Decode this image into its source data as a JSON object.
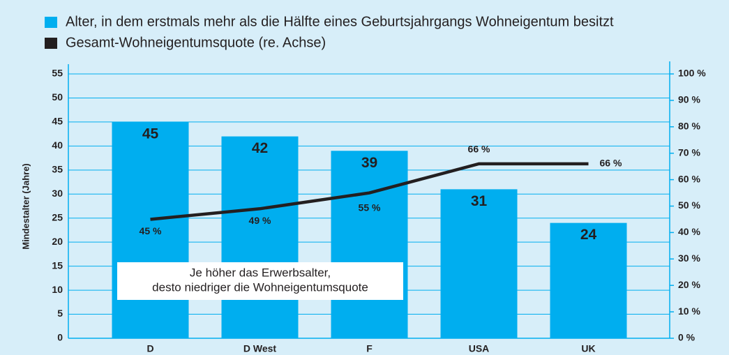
{
  "chart_data": {
    "type": "bar_line",
    "categories": [
      "D",
      "D West",
      "F",
      "USA",
      "UK"
    ],
    "series": [
      {
        "name": "Alter, in dem erstmals mehr als die Hälfte eines Geburtsjahrgangs Wohneigentum besitzt",
        "type": "bar",
        "color": "#00aeef",
        "values": [
          45,
          42,
          39,
          31,
          24
        ]
      },
      {
        "name": "Gesamt-Wohneigentumsquote (re. Achse)",
        "type": "line",
        "axis": "y2",
        "color": "#231f20",
        "values": [
          45,
          49,
          55,
          66,
          66
        ],
        "value_labels": [
          "45 %",
          "49 %",
          "55 %",
          "66 %",
          "66 %"
        ]
      }
    ],
    "ylabel": "Mindestalter (Jahre)",
    "ylim": [
      0,
      55
    ],
    "yticks": [
      0,
      5,
      10,
      15,
      20,
      25,
      30,
      35,
      40,
      45,
      50,
      55
    ],
    "y2lim": [
      0,
      100
    ],
    "y2ticks": [
      {
        "value": 0,
        "label": "0 %"
      },
      {
        "value": 10,
        "label": "10 %"
      },
      {
        "value": 20,
        "label": "20 %"
      },
      {
        "value": 30,
        "label": "30 %"
      },
      {
        "value": 40,
        "label": "40 %"
      },
      {
        "value": 50,
        "label": "50 %"
      },
      {
        "value": 60,
        "label": "60 %"
      },
      {
        "value": 70,
        "label": "70 %"
      },
      {
        "value": 80,
        "label": "80 %"
      },
      {
        "value": 90,
        "label": "90 %"
      },
      {
        "value": 100,
        "label": "100 %"
      }
    ],
    "annotations": [
      "Je höher das Erwerbsalter,",
      "desto niedriger die Wohneigentumsquote"
    ],
    "grid": true,
    "legend": "top"
  }
}
